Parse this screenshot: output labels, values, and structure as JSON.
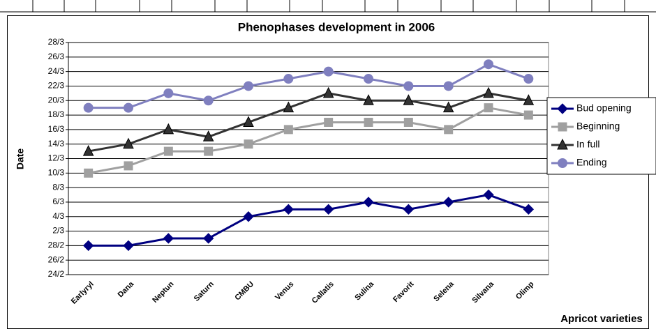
{
  "chart_data": {
    "type": "line",
    "title": "Phenophases development in 2006",
    "x_label": "Apricot varieties",
    "y_label": "Date",
    "categories": [
      "Earlyryl",
      "Dana",
      "Neptun",
      "Saturn",
      "CMBU",
      "Venus",
      "Callatis",
      "Sulina",
      "Favorit",
      "Selena",
      "Silvana",
      "Olimp"
    ],
    "series": [
      {
        "name": "Bud opening",
        "color": "#000080",
        "marker": "diamond",
        "values": [
          59,
          59,
          60,
          60,
          63,
          64,
          64,
          65,
          64,
          65,
          66,
          64
        ]
      },
      {
        "name": "Beginning",
        "color": "#a0a0a0",
        "marker": "square",
        "values": [
          69,
          70,
          72,
          72,
          73,
          75,
          76,
          76,
          76,
          75,
          78,
          77
        ]
      },
      {
        "name": "In full",
        "color": "#333333",
        "marker": "triangle",
        "values": [
          72,
          73,
          75,
          74,
          76,
          78,
          80,
          79,
          79,
          78,
          80,
          79
        ]
      },
      {
        "name": "Ending",
        "color": "#7f7fbf",
        "marker": "circle",
        "values": [
          78,
          78,
          80,
          79,
          81,
          82,
          83,
          82,
          81,
          81,
          84,
          82
        ]
      }
    ],
    "ylim": [
      55,
      87
    ],
    "yticks": [
      {
        "value": 55,
        "label": "24/2"
      },
      {
        "value": 57,
        "label": "26/2"
      },
      {
        "value": 59,
        "label": "28/2"
      },
      {
        "value": 61,
        "label": "2/3"
      },
      {
        "value": 63,
        "label": "4/3"
      },
      {
        "value": 65,
        "label": "6/3"
      },
      {
        "value": 67,
        "label": "8/3"
      },
      {
        "value": 69,
        "label": "10/3"
      },
      {
        "value": 71,
        "label": "12/3"
      },
      {
        "value": 73,
        "label": "14/3"
      },
      {
        "value": 75,
        "label": "16/3"
      },
      {
        "value": 77,
        "label": "18/3"
      },
      {
        "value": 79,
        "label": "20/3"
      },
      {
        "value": 81,
        "label": "22/3"
      },
      {
        "value": 83,
        "label": "24/3"
      },
      {
        "value": 85,
        "label": "26/3"
      },
      {
        "value": 87,
        "label": "28/3"
      }
    ],
    "grid": true,
    "legend": "right"
  }
}
